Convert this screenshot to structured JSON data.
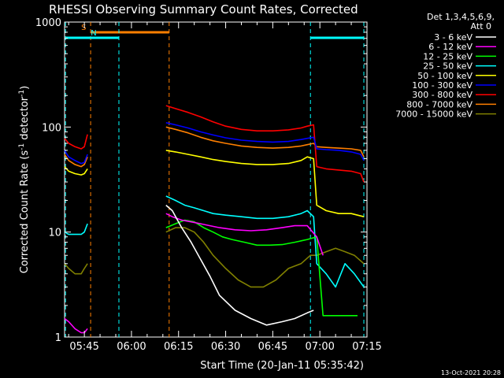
{
  "chart_data": {
    "type": "line",
    "title": "RHESSI Observing Summary Count Rates, Corrected",
    "xlabel": "Start Time (20-Jan-11 05:35:42)",
    "ylabel": "Corrected Count Rate (s",
    "ylabel_sup1": "-1",
    "ylabel_mid": " detector",
    "ylabel_sup2": "-1",
    "ylabel_end": ")",
    "yscale": "log",
    "ylim": [
      1,
      1000
    ],
    "xlim_min": [
      338.7,
      435
    ],
    "x_ticks": [
      {
        "min": 345,
        "label": "05:45"
      },
      {
        "min": 360,
        "label": "06:00"
      },
      {
        "min": 375,
        "label": "06:15"
      },
      {
        "min": 390,
        "label": "06:30"
      },
      {
        "min": 405,
        "label": "06:45"
      },
      {
        "min": 420,
        "label": "07:00"
      },
      {
        "min": 435,
        "label": "07:15"
      }
    ],
    "y_ticks": [
      {
        "value": 1,
        "label": "1"
      },
      {
        "value": 10,
        "label": "10"
      },
      {
        "value": 100,
        "label": "100"
      },
      {
        "value": 1000,
        "label": "1000"
      }
    ],
    "legend": {
      "header1": "Det 1,3,4,5,6,9,",
      "header2": "Att 0",
      "placement": "right"
    },
    "bands": [
      {
        "label": "S",
        "color": "#ff7f00",
        "start": 347,
        "end": 372
      },
      {
        "label": "N",
        "color": "#00ffff",
        "start": 339,
        "end": 356
      },
      {
        "label": "",
        "color": "#00ffff",
        "start": 417,
        "end": 434
      }
    ],
    "series": [
      {
        "name": "3 - 6 keV",
        "color": "#ffffff",
        "x": [
          371,
          373,
          376,
          379,
          382,
          385,
          388,
          393,
          398,
          403,
          408,
          412,
          416,
          418
        ],
        "y": [
          18,
          16,
          11,
          8,
          5.5,
          3.8,
          2.5,
          1.8,
          1.5,
          1.3,
          1.4,
          1.5,
          1.7,
          1.8
        ]
      },
      {
        "name": "6 - 12 keV",
        "color": "#ff00ff",
        "x": [
          338.7,
          340,
          342,
          344,
          345,
          346,
          371,
          373,
          376,
          379,
          382,
          385,
          388,
          393,
          398,
          403,
          408,
          412,
          416,
          419,
          421
        ],
        "y": [
          1.5,
          1.4,
          1.2,
          1.1,
          1.1,
          1.2,
          15,
          14,
          13,
          12.5,
          12,
          11.5,
          11,
          10.5,
          10.3,
          10.5,
          11,
          11.5,
          11.5,
          9,
          6
        ]
      },
      {
        "name": "12 - 25 keV",
        "color": "#00ff00",
        "x": [
          371,
          374,
          377,
          380,
          383,
          386,
          389,
          392,
          396,
          400,
          404,
          408,
          412,
          416,
          419,
          421,
          424,
          428,
          432
        ],
        "y": [
          11,
          12,
          13,
          12.5,
          11,
          10,
          9,
          8.5,
          8,
          7.5,
          7.5,
          7.6,
          8,
          8.5,
          9,
          1.6,
          1.6,
          1.6,
          1.6
        ]
      },
      {
        "name": "25 - 50 keV",
        "color": "#00ffff",
        "x": [
          338.7,
          340,
          342,
          344,
          345,
          346,
          371,
          374,
          377,
          380,
          383,
          386,
          390,
          395,
          400,
          405,
          410,
          414,
          416,
          418,
          419,
          422,
          425,
          428,
          431,
          434
        ],
        "y": [
          10,
          9.5,
          9.5,
          9.5,
          10,
          12,
          22,
          20,
          18,
          17,
          16,
          15,
          14.5,
          14,
          13.5,
          13.5,
          14,
          15,
          16,
          14,
          5,
          4,
          3,
          5,
          4,
          3
        ]
      },
      {
        "name": "50 - 100 keV",
        "color": "#ffff00",
        "x": [
          338.7,
          340,
          342,
          344,
          345,
          346,
          371,
          374,
          378,
          382,
          386,
          390,
          395,
          400,
          405,
          410,
          414,
          416,
          418,
          419,
          422,
          426,
          430,
          434
        ],
        "y": [
          42,
          38,
          36,
          35,
          36,
          40,
          60,
          58,
          55,
          52,
          49,
          47,
          45,
          44,
          44,
          45,
          48,
          52,
          50,
          18,
          16,
          15,
          15,
          14
        ]
      },
      {
        "name": "100 - 300 keV",
        "color": "#0000ff",
        "x": [
          338.7,
          340,
          342,
          344,
          345,
          346,
          371,
          374,
          378,
          382,
          386,
          390,
          395,
          400,
          405,
          410,
          414,
          416,
          418,
          419,
          422,
          426,
          430,
          433,
          434
        ],
        "y": [
          60,
          52,
          48,
          45,
          46,
          55,
          110,
          105,
          98,
          90,
          84,
          79,
          75,
          73,
          72,
          73,
          76,
          78,
          80,
          62,
          61,
          60,
          58,
          55,
          48
        ]
      },
      {
        "name": "300 - 800 keV",
        "color": "#ff0000",
        "x": [
          338.7,
          340,
          342,
          344,
          345,
          346,
          371,
          374,
          378,
          382,
          386,
          390,
          395,
          400,
          405,
          410,
          414,
          416,
          418,
          419,
          422,
          426,
          430,
          433,
          434
        ],
        "y": [
          78,
          70,
          65,
          62,
          65,
          85,
          160,
          150,
          138,
          125,
          112,
          102,
          95,
          92,
          92,
          94,
          98,
          102,
          105,
          42,
          40,
          39,
          38,
          36,
          30
        ]
      },
      {
        "name": "800 - 7000 keV",
        "color": "#ff7f00",
        "x": [
          338.7,
          340,
          342,
          344,
          345,
          346,
          371,
          374,
          378,
          382,
          386,
          390,
          395,
          400,
          405,
          410,
          414,
          416,
          418,
          419,
          422,
          426,
          430,
          433,
          434
        ],
        "y": [
          55,
          48,
          44,
          42,
          44,
          52,
          100,
          95,
          88,
          80,
          74,
          70,
          66,
          64,
          63,
          64,
          66,
          68,
          70,
          65,
          64,
          63,
          62,
          60,
          52
        ]
      },
      {
        "name": "7000 - 15000 keV",
        "color": "#808000",
        "x": [
          338.7,
          340,
          342,
          344,
          345,
          346,
          371,
          374,
          377,
          380,
          383,
          386,
          390,
          394,
          398,
          402,
          406,
          410,
          414,
          417,
          419,
          422,
          425,
          428,
          431,
          434
        ],
        "y": [
          5,
          4.5,
          4,
          4,
          4.5,
          5,
          10,
          11,
          11,
          10,
          8,
          6,
          4.5,
          3.5,
          3,
          3,
          3.5,
          4.5,
          5,
          6,
          6,
          6.5,
          7,
          6.5,
          6,
          5
        ]
      }
    ],
    "grid": false
  },
  "footer": {
    "date": "13-Oct-2021 20:28"
  }
}
